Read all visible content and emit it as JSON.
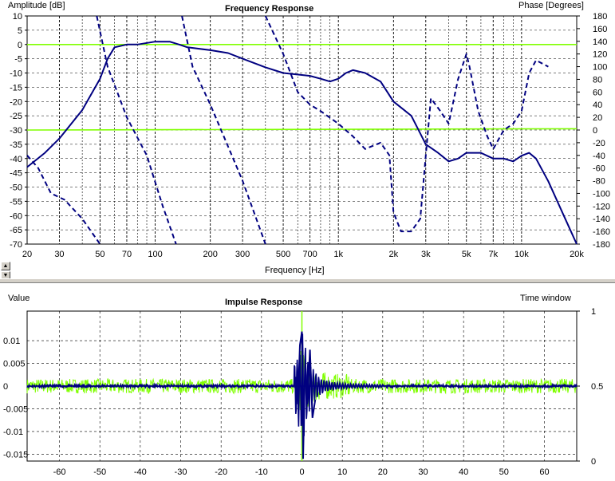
{
  "colors": {
    "navy": "#000080",
    "green": "#80ff00",
    "grid": "#000000"
  },
  "chart_data": [
    {
      "type": "line",
      "title": "Frequency Response",
      "xlabel": "Frequency [Hz]",
      "ylabel": "Amplitude [dB]",
      "y2label": "Phase [Degrees]",
      "xscale": "log",
      "xlim": [
        20,
        20000
      ],
      "ylim": [
        -70,
        10
      ],
      "y2lim": [
        -180,
        180
      ],
      "grid": true,
      "xticks": [
        {
          "v": 20,
          "t": "20"
        },
        {
          "v": 30,
          "t": "30"
        },
        {
          "v": 50,
          "t": "50"
        },
        {
          "v": 70,
          "t": "70"
        },
        {
          "v": 100,
          "t": "100"
        },
        {
          "v": 200,
          "t": "200"
        },
        {
          "v": 300,
          "t": "300"
        },
        {
          "v": 500,
          "t": "500"
        },
        {
          "v": 700,
          "t": "700"
        },
        {
          "v": 1000,
          "t": "1k"
        },
        {
          "v": 2000,
          "t": "2k"
        },
        {
          "v": 3000,
          "t": "3k"
        },
        {
          "v": 5000,
          "t": "5k"
        },
        {
          "v": 7000,
          "t": "7k"
        },
        {
          "v": 10000,
          "t": "10k"
        },
        {
          "v": 20000,
          "t": "20k"
        }
      ],
      "yticks": [
        10,
        5,
        0,
        -5,
        -10,
        -15,
        -20,
        -25,
        -30,
        -35,
        -40,
        -45,
        -50,
        -55,
        -60,
        -65,
        -70
      ],
      "y2ticks": [
        180,
        160,
        140,
        120,
        100,
        80,
        60,
        40,
        20,
        0,
        -20,
        -40,
        -60,
        -80,
        -100,
        -120,
        -140,
        -160,
        -180
      ],
      "series": [
        {
          "style": "solid",
          "color": "#000080",
          "axis": "left",
          "points": [
            [
              20,
              -43
            ],
            [
              25,
              -38
            ],
            [
              30,
              -33
            ],
            [
              40,
              -23
            ],
            [
              50,
              -12
            ],
            [
              55,
              -5
            ],
            [
              60,
              -1
            ],
            [
              70,
              0
            ],
            [
              80,
              0
            ],
            [
              100,
              1
            ],
            [
              120,
              1
            ],
            [
              135,
              0
            ],
            [
              150,
              -1
            ],
            [
              200,
              -2
            ],
            [
              250,
              -3
            ],
            [
              300,
              -5
            ],
            [
              400,
              -8
            ],
            [
              500,
              -10
            ],
            [
              700,
              -11
            ],
            [
              800,
              -12
            ],
            [
              900,
              -13
            ],
            [
              1000,
              -12
            ],
            [
              1100,
              -10
            ],
            [
              1200,
              -9
            ],
            [
              1400,
              -10
            ],
            [
              1700,
              -13
            ],
            [
              2000,
              -20
            ],
            [
              2500,
              -25
            ],
            [
              3000,
              -35
            ],
            [
              3500,
              -38
            ],
            [
              4000,
              -41
            ],
            [
              4500,
              -40
            ],
            [
              5000,
              -38
            ],
            [
              6000,
              -38
            ],
            [
              7000,
              -40
            ],
            [
              8000,
              -40
            ],
            [
              9000,
              -41
            ],
            [
              10000,
              -39
            ],
            [
              11000,
              -38
            ],
            [
              12000,
              -40
            ],
            [
              14000,
              -48
            ],
            [
              17000,
              -60
            ],
            [
              20000,
              -70
            ]
          ]
        },
        {
          "style": "dashed",
          "color": "#000080",
          "axis": "right",
          "points": [
            [
              20,
              -40
            ],
            [
              23,
              -60
            ],
            [
              27,
              -100
            ],
            [
              32,
              -110
            ],
            [
              40,
              -140
            ],
            [
              50,
              -180
            ]
          ]
        },
        {
          "style": "dashed",
          "color": "#000080",
          "axis": "right",
          "points": [
            [
              48,
              180
            ],
            [
              55,
              100
            ],
            [
              70,
              20
            ],
            [
              90,
              -40
            ],
            [
              110,
              -120
            ],
            [
              130,
              -180
            ]
          ]
        },
        {
          "style": "dashed",
          "color": "#000080",
          "axis": "right",
          "points": [
            [
              140,
              180
            ],
            [
              160,
              100
            ],
            [
              200,
              40
            ],
            [
              300,
              -80
            ],
            [
              400,
              -180
            ]
          ]
        },
        {
          "style": "dashed",
          "color": "#000080",
          "axis": "right",
          "points": [
            [
              400,
              180
            ],
            [
              500,
              120
            ],
            [
              600,
              60
            ],
            [
              700,
              40
            ],
            [
              800,
              30
            ],
            [
              1000,
              10
            ],
            [
              1200,
              -10
            ],
            [
              1400,
              -30
            ],
            [
              1700,
              -20
            ],
            [
              1900,
              -40
            ],
            [
              2000,
              -130
            ],
            [
              2200,
              -160
            ],
            [
              2500,
              -160
            ],
            [
              2800,
              -140
            ],
            [
              3000,
              -40
            ],
            [
              3200,
              50
            ],
            [
              3600,
              30
            ],
            [
              4000,
              10
            ],
            [
              4500,
              80
            ],
            [
              5000,
              120
            ],
            [
              5200,
              100
            ],
            [
              5800,
              30
            ],
            [
              6500,
              -10
            ],
            [
              7000,
              -30
            ],
            [
              8000,
              0
            ],
            [
              9000,
              10
            ],
            [
              10000,
              30
            ],
            [
              11000,
              90
            ],
            [
              12000,
              110
            ],
            [
              14000,
              100
            ]
          ]
        },
        {
          "style": "solid",
          "color": "#80ff00",
          "axis": "left",
          "points": [
            [
              20,
              0
            ],
            [
              20000,
              0
            ]
          ]
        },
        {
          "style": "solid",
          "color": "#80ff00",
          "axis": "right",
          "points": [
            [
              20,
              0
            ],
            [
              20000,
              2
            ]
          ]
        }
      ]
    },
    {
      "type": "line",
      "title": "Impulse Response",
      "ylabel": "Value",
      "y2label": "Time window",
      "xlim": [
        -68,
        68
      ],
      "ylim": [
        -0.0165,
        0.0165
      ],
      "y2lim": [
        0,
        1
      ],
      "grid": true,
      "xticks": [
        -60,
        -50,
        -40,
        -30,
        -20,
        -10,
        0,
        10,
        20,
        30,
        40,
        50,
        60
      ],
      "yticks": [
        {
          "v": 0.01,
          "t": "0.01"
        },
        {
          "v": 0.005,
          "t": "0.005"
        },
        {
          "v": 0,
          "t": "0"
        },
        {
          "v": -0.005,
          "t": "-0.005"
        },
        {
          "v": -0.01,
          "t": "-0.01"
        },
        {
          "v": -0.015,
          "t": "-0.015"
        }
      ],
      "y2ticks": [
        {
          "v": 1,
          "t": "1"
        },
        {
          "v": 0.5,
          "t": "0.5"
        },
        {
          "v": 0,
          "t": "0"
        }
      ],
      "series": [
        {
          "name": "",
          "color": "#000080",
          "description_ref": "impulse",
          "points": [
            [
              -68,
              0
            ],
            [
              -2,
              0
            ],
            [
              -1.5,
              0.002
            ],
            [
              -1,
              -0.004
            ],
            [
              -0.5,
              0.009
            ],
            [
              0,
              0.012
            ],
            [
              0.3,
              -0.016
            ],
            [
              0.8,
              0.006
            ],
            [
              1.3,
              -0.004
            ],
            [
              2,
              0.008
            ],
            [
              2.6,
              -0.007
            ],
            [
              3.3,
              -0.003
            ],
            [
              4,
              0.002
            ],
            [
              5,
              -0.002
            ],
            [
              6,
              0.001
            ],
            [
              8,
              -0.001
            ],
            [
              10,
              0.0008
            ],
            [
              15,
              -0.0005
            ],
            [
              20,
              0.0003
            ],
            [
              68,
              0
            ]
          ]
        },
        {
          "name": "",
          "color": "#80ff00",
          "noise_level": 0.0016,
          "spike_max": 0.0165,
          "spike_min": -0.0165,
          "window_value": 0.5
        }
      ]
    }
  ]
}
